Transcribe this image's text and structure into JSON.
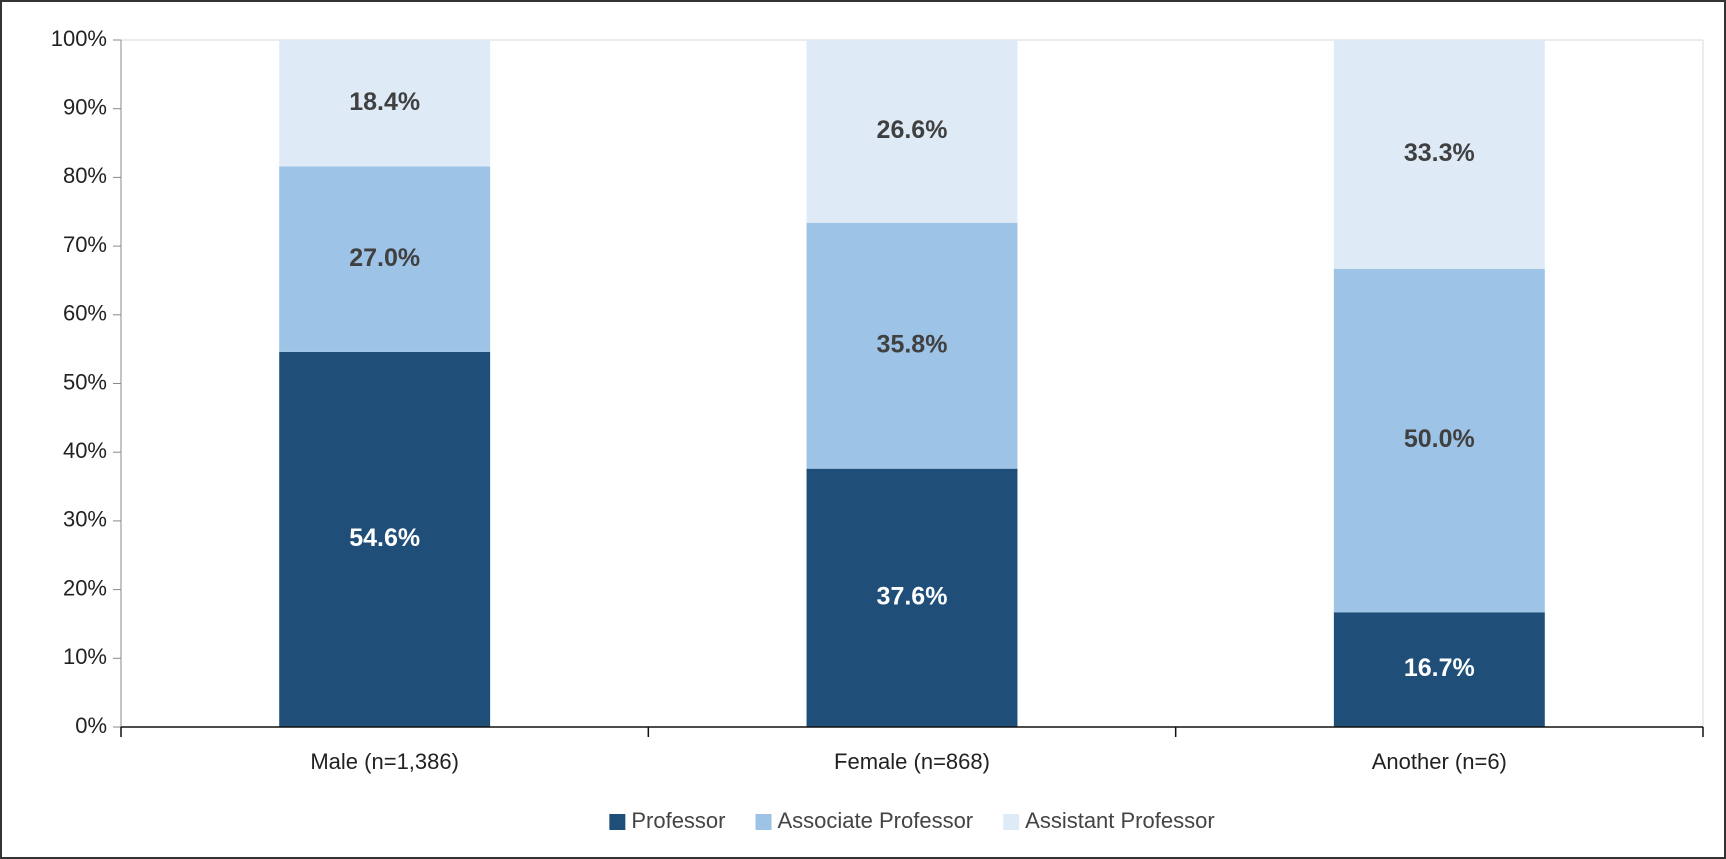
{
  "chart_data": {
    "type": "stacked_bar",
    "categories": [
      "Male (n=1,386)",
      "Female (n=868)",
      "Another (n=6)"
    ],
    "series": [
      {
        "name": "Professor",
        "color": "#1f4e79",
        "values": [
          54.6,
          37.6,
          16.7
        ],
        "value_labels": [
          "54.6%",
          "37.6%",
          "16.7%"
        ]
      },
      {
        "name": "Associate Professor",
        "color": "#9dc3e6",
        "values": [
          27.0,
          35.8,
          50.0
        ],
        "value_labels": [
          "27.0%",
          "35.8%",
          "50.0%"
        ]
      },
      {
        "name": "Assistant Professor",
        "color": "#deebf7",
        "values": [
          18.4,
          26.6,
          33.3
        ],
        "value_labels": [
          "18.4%",
          "26.6%",
          "33.3%"
        ]
      }
    ],
    "ylim": [
      0,
      100
    ],
    "yticks": [
      {
        "value": 0,
        "label": "0%"
      },
      {
        "value": 10,
        "label": "10%"
      },
      {
        "value": 20,
        "label": "20%"
      },
      {
        "value": 30,
        "label": "30%"
      },
      {
        "value": 40,
        "label": "40%"
      },
      {
        "value": 50,
        "label": "50%"
      },
      {
        "value": 60,
        "label": "60%"
      },
      {
        "value": 70,
        "label": "70%"
      },
      {
        "value": 80,
        "label": "80%"
      },
      {
        "value": 90,
        "label": "90%"
      },
      {
        "value": 100,
        "label": "100%"
      }
    ],
    "legend": "bottom"
  }
}
